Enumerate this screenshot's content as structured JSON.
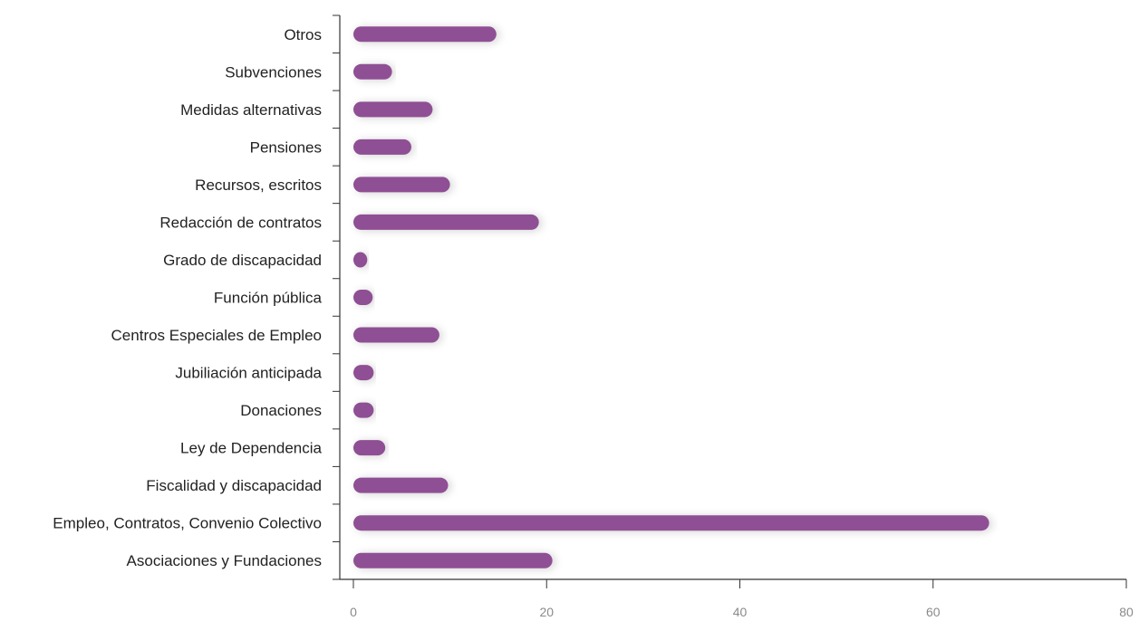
{
  "chart_data": {
    "type": "bar",
    "orientation": "horizontal",
    "categories": [
      "Otros",
      "Subvenciones",
      "Medidas alternativas",
      "Pensiones",
      "Recursos, escritos",
      "Redacción de contratos",
      "Grado de discapacidad",
      "Función pública",
      "Centros Especiales de Empleo",
      "Jubiliación anticipada",
      "Donaciones",
      "Ley de Dependencia",
      "Fiscalidad y discapacidad",
      "Empleo, Contratos, Convenio Colectivo",
      "Asociaciones y Fundaciones"
    ],
    "values": [
      14.8,
      4,
      8.2,
      6,
      10,
      19.2,
      1.4,
      2,
      8.9,
      2.1,
      2.1,
      3.3,
      9.8,
      65.8,
      20.6
    ],
    "xlim": [
      0,
      80
    ],
    "xticks": [
      0,
      20,
      40,
      60,
      80
    ],
    "title": "",
    "xlabel": "",
    "ylabel": "",
    "bar_color": "#8f4f94",
    "grid": false,
    "legend": "none"
  }
}
